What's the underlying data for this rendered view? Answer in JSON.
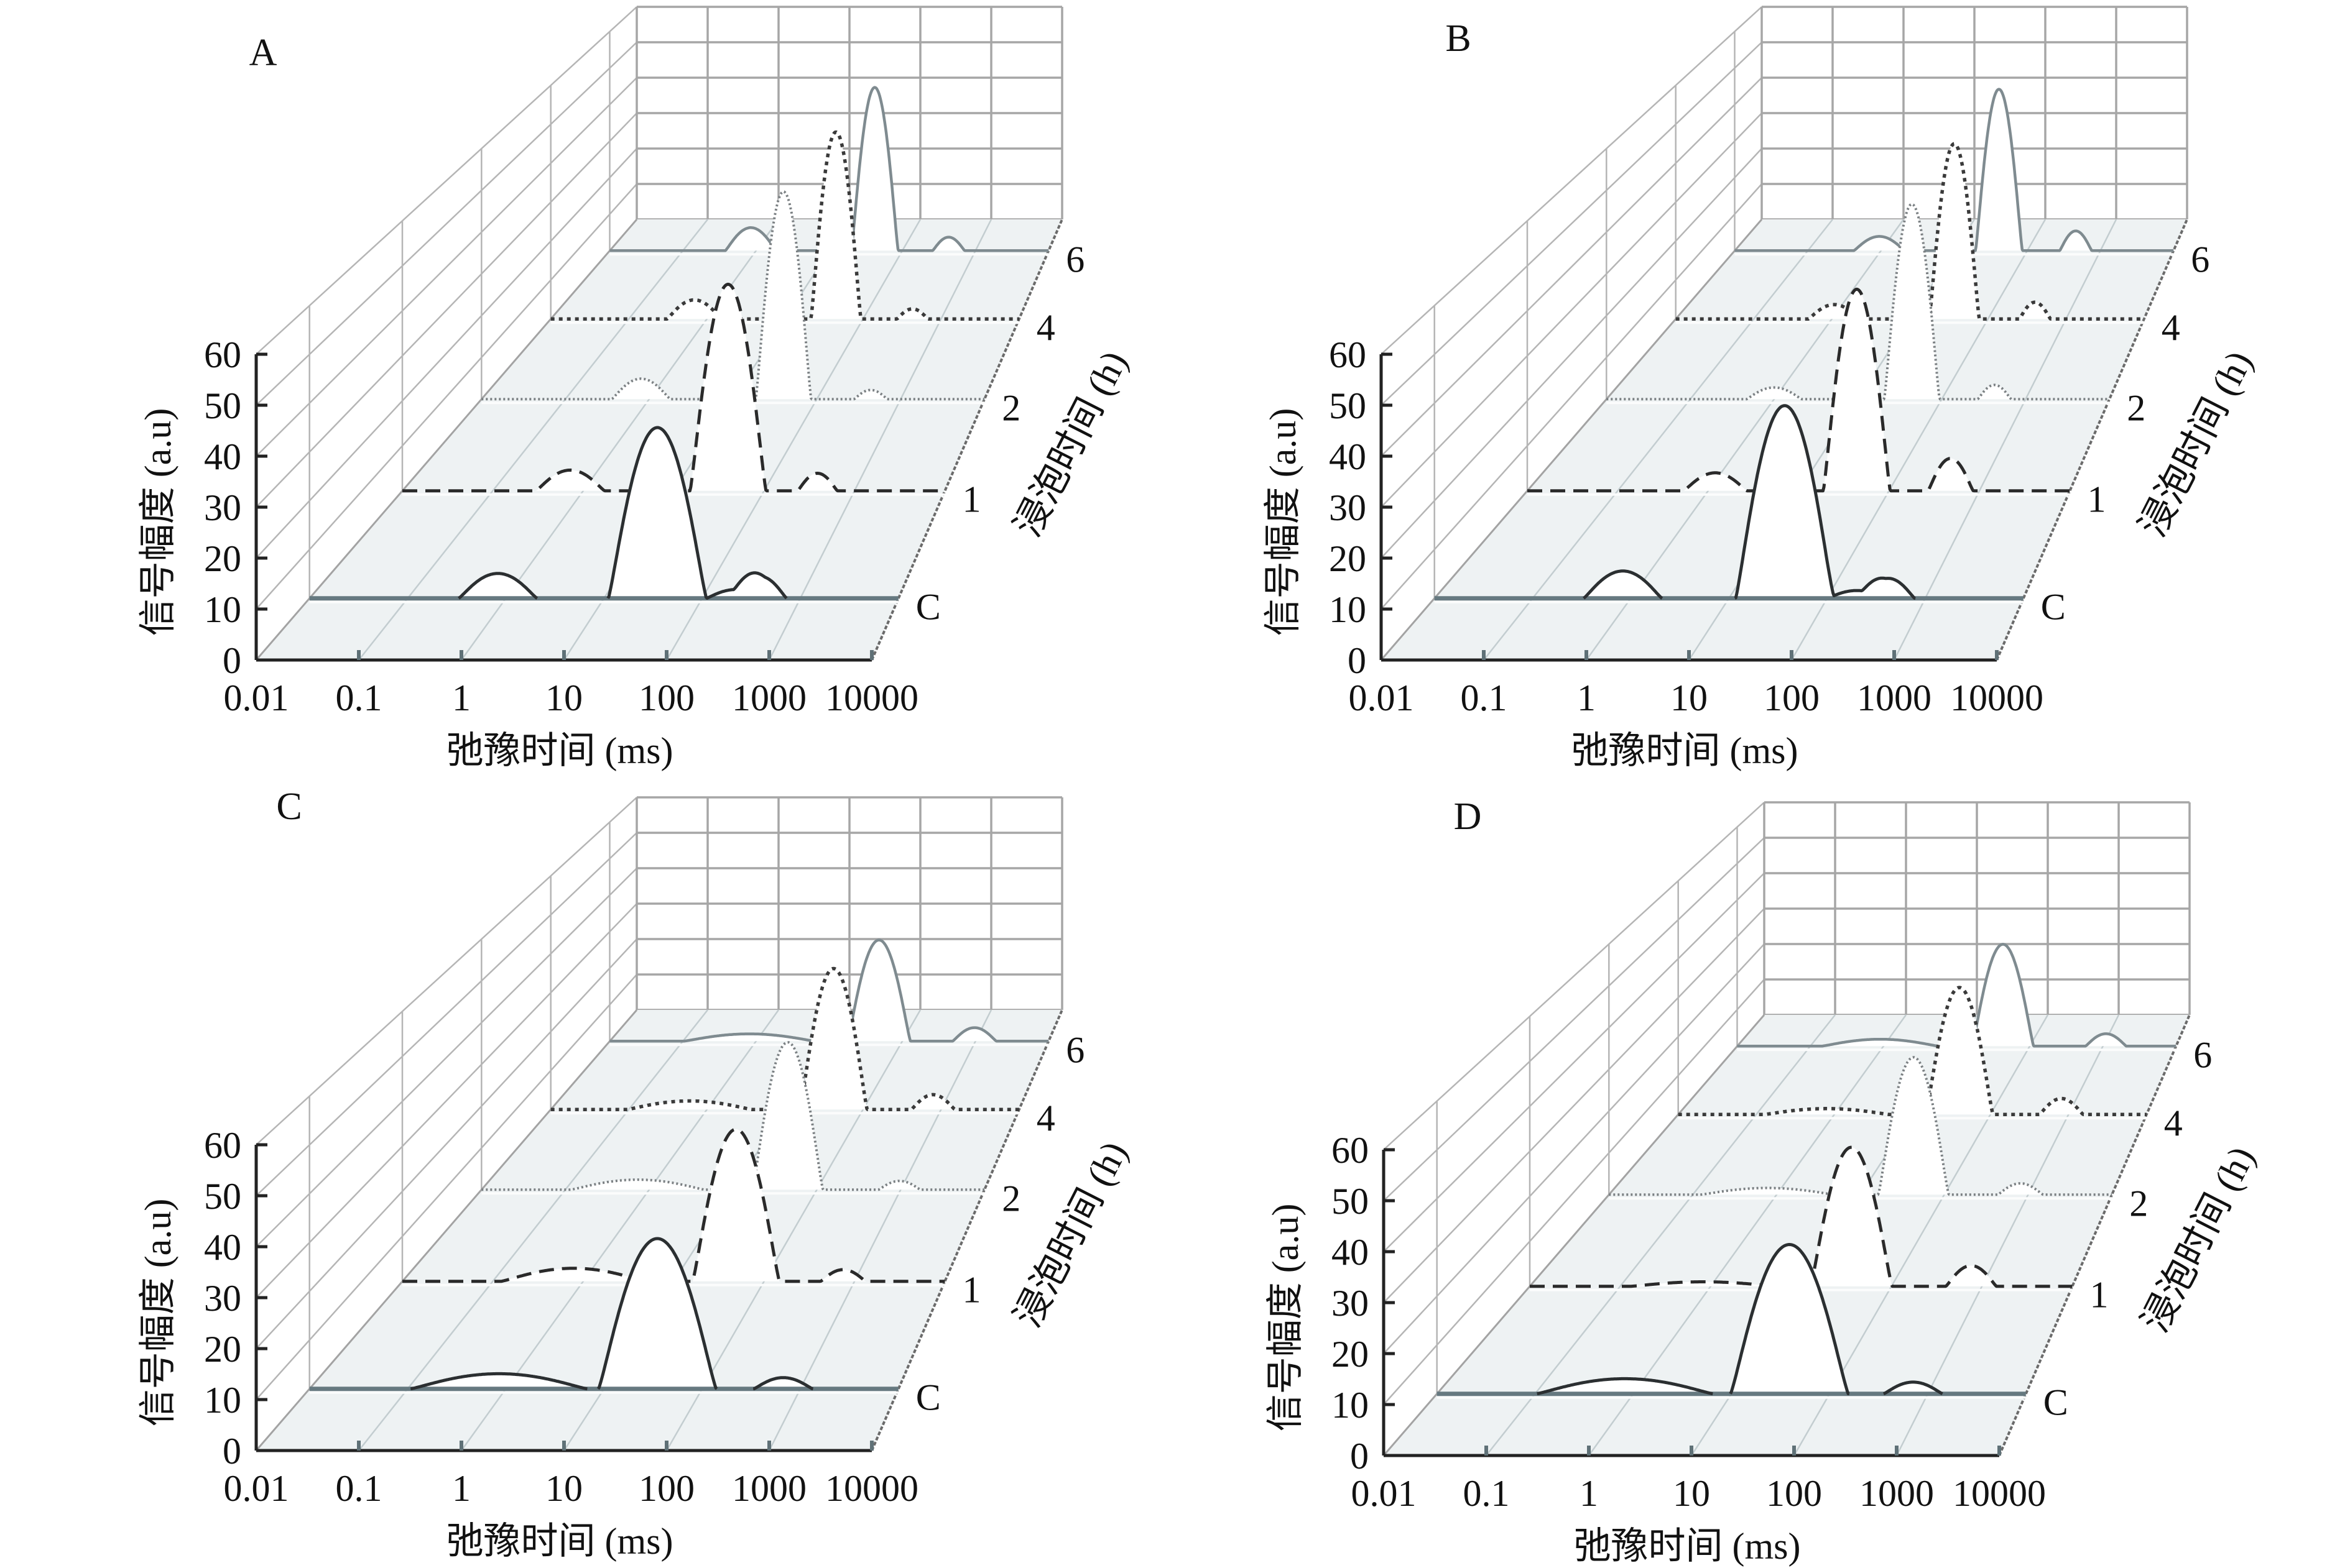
{
  "colors": {
    "floor": "#eef2f3",
    "floor_grid": "#c3cdd0",
    "floor_left_edge": "#a3a3a3",
    "floor_right_edge": "#6b6b6b",
    "side_wall_grid": "#b5b5b5",
    "back_wall_grid": "#a6a6a6",
    "axis": "#222222",
    "x_tick": "#5f7177",
    "area_fill": "#ffffff"
  },
  "chart_data": [
    {
      "type": "line",
      "title": "A",
      "xlabel": "弛豫时间 (ms)",
      "ylabel": "信号幅度 (a.u)",
      "zlabel": "浸泡时间 (h)",
      "x_scale": "log",
      "xlim": [
        0.01,
        10000
      ],
      "ylim": [
        0,
        60
      ],
      "grid": true,
      "x_ticks": [
        "0.01",
        "0.1",
        "1",
        "10",
        "100",
        "1000",
        "10000"
      ],
      "y_ticks": [
        "0",
        "10",
        "20",
        "30",
        "40",
        "50",
        "60"
      ],
      "series": [
        {
          "name": "C",
          "line_style": "solid",
          "color": "#2b2f31",
          "baseline_color": "#667980",
          "peaks": [
            {
              "t_ms": 0.83,
              "amplitude": 5.1,
              "half_width_decades": 0.4
            },
            {
              "t_ms": 35,
              "amplitude": 35.0,
              "half_width_decades": 0.5
            },
            {
              "t_ms": 220,
              "amplitude": 1.8,
              "half_width_decades": 0.3
            },
            {
              "t_ms": 390,
              "amplitude": 4.5,
              "half_width_decades": 0.27
            }
          ]
        },
        {
          "name": "1",
          "line_style": "dashed",
          "color": "#2a2a2a",
          "peaks": [
            {
              "t_ms": 0.72,
              "amplitude": 4.6,
              "half_width_decades": 0.38
            },
            {
              "t_ms": 40,
              "amplitude": 45.9,
              "half_width_decades": 0.42
            },
            {
              "t_ms": 390,
              "amplitude": 3.9,
              "half_width_decades": 0.22
            }
          ]
        },
        {
          "name": "2",
          "line_style": "dotted",
          "color": "#7b8083",
          "peaks": [
            {
              "t_ms": 0.8,
              "amplitude": 4.9,
              "half_width_decades": 0.35
            },
            {
              "t_ms": 40,
              "amplitude": 49.7,
              "half_width_decades": 0.33
            },
            {
              "t_ms": 440,
              "amplitude": 2.2,
              "half_width_decades": 0.2
            }
          ]
        },
        {
          "name": "4",
          "line_style": "dotted",
          "color": "#3a3a3a",
          "peaks": [
            {
              "t_ms": 0.69,
              "amplitude": 4.9,
              "half_width_decades": 0.35
            },
            {
              "t_ms": 45,
              "amplitude": 48.0,
              "half_width_decades": 0.32
            },
            {
              "t_ms": 430,
              "amplitude": 2.6,
              "half_width_decades": 0.2
            }
          ]
        },
        {
          "name": "6",
          "line_style": "solid",
          "color": "#7f8b90",
          "peaks": [
            {
              "t_ms": 0.85,
              "amplitude": 6.3,
              "half_width_decades": 0.35
            },
            {
              "t_ms": 42,
              "amplitude": 44.7,
              "half_width_decades": 0.32
            },
            {
              "t_ms": 430,
              "amplitude": 3.7,
              "half_width_decades": 0.22
            }
          ]
        }
      ]
    },
    {
      "type": "line",
      "title": "B",
      "xlabel": "弛豫时间 (ms)",
      "ylabel": "信号幅度 (a.u)",
      "zlabel": "浸泡时间 (h)",
      "x_scale": "log",
      "xlim": [
        0.01,
        10000
      ],
      "ylim": [
        0,
        60
      ],
      "grid": true,
      "x_ticks": [
        "0.01",
        "0.1",
        "1",
        "10",
        "100",
        "1000",
        "10000"
      ],
      "y_ticks": [
        "0",
        "10",
        "20",
        "30",
        "40",
        "50",
        "60"
      ],
      "series": [
        {
          "name": "C",
          "line_style": "solid",
          "color": "#2b2f31",
          "baseline_color": "#667980",
          "peaks": [
            {
              "t_ms": 0.83,
              "amplitude": 5.6,
              "half_width_decades": 0.4
            },
            {
              "t_ms": 37,
              "amplitude": 39.5,
              "half_width_decades": 0.5
            },
            {
              "t_ms": 200,
              "amplitude": 1.6,
              "half_width_decades": 0.3
            },
            {
              "t_ms": 420,
              "amplitude": 4.1,
              "half_width_decades": 0.27
            }
          ]
        },
        {
          "name": "1",
          "line_style": "dashed",
          "color": "#2a2a2a",
          "peaks": [
            {
              "t_ms": 1.2,
              "amplitude": 4.0,
              "half_width_decades": 0.35
            },
            {
              "t_ms": 44,
              "amplitude": 44.8,
              "half_width_decades": 0.37
            },
            {
              "t_ms": 480,
              "amplitude": 7.2,
              "half_width_decades": 0.25
            }
          ]
        },
        {
          "name": "2",
          "line_style": "dotted",
          "color": "#7b8083",
          "peaks": [
            {
              "t_ms": 1.0,
              "amplitude": 2.8,
              "half_width_decades": 0.33
            },
            {
              "t_ms": 44,
              "amplitude": 46.7,
              "half_width_decades": 0.33
            },
            {
              "t_ms": 425,
              "amplitude": 3.4,
              "half_width_decades": 0.2
            }
          ]
        },
        {
          "name": "4",
          "line_style": "dotted",
          "color": "#3a3a3a",
          "peaks": [
            {
              "t_ms": 1.07,
              "amplitude": 3.7,
              "half_width_decades": 0.33
            },
            {
              "t_ms": 37,
              "amplitude": 45.0,
              "half_width_decades": 0.32
            },
            {
              "t_ms": 400,
              "amplitude": 4.3,
              "half_width_decades": 0.2
            }
          ]
        },
        {
          "name": "6",
          "line_style": "solid",
          "color": "#7f8b90",
          "peaks": [
            {
              "t_ms": 0.95,
              "amplitude": 3.9,
              "half_width_decades": 0.35
            },
            {
              "t_ms": 41,
              "amplitude": 44.2,
              "half_width_decades": 0.32
            },
            {
              "t_ms": 460,
              "amplitude": 5.4,
              "half_width_decades": 0.22
            }
          ]
        }
      ]
    },
    {
      "type": "line",
      "title": "C",
      "xlabel": "弛豫时间 (ms)",
      "ylabel": "信号幅度 (a.u)",
      "zlabel": "浸泡时间 (h)",
      "x_scale": "log",
      "xlim": [
        0.01,
        10000
      ],
      "ylim": [
        0,
        60
      ],
      "grid": true,
      "x_ticks": [
        "0.01",
        "0.1",
        "1",
        "10",
        "100",
        "1000",
        "10000"
      ],
      "y_ticks": [
        "0",
        "10",
        "20",
        "30",
        "40",
        "50",
        "60"
      ],
      "series": [
        {
          "name": "C",
          "line_style": "solid",
          "color": "#2b2f31",
          "baseline_color": "#667980",
          "peaks": [
            {
              "t_ms": 0.85,
              "amplitude": 3.1,
              "half_width_decades": 0.9
            },
            {
              "t_ms": 35,
              "amplitude": 30.8,
              "half_width_decades": 0.6
            },
            {
              "t_ms": 670,
              "amplitude": 2.3,
              "half_width_decades": 0.3
            }
          ]
        },
        {
          "name": "1",
          "line_style": "dashed",
          "color": "#2a2a2a",
          "peaks": [
            {
              "t_ms": 0.78,
              "amplitude": 2.9,
              "half_width_decades": 0.8
            },
            {
              "t_ms": 49,
              "amplitude": 33.8,
              "half_width_decades": 0.48
            },
            {
              "t_ms": 750,
              "amplitude": 2.6,
              "half_width_decades": 0.25
            }
          ]
        },
        {
          "name": "2",
          "line_style": "dotted",
          "color": "#7b8083",
          "peaks": [
            {
              "t_ms": 0.73,
              "amplitude": 2.4,
              "half_width_decades": 0.8
            },
            {
              "t_ms": 45,
              "amplitude": 35.3,
              "half_width_decades": 0.42
            },
            {
              "t_ms": 970,
              "amplitude": 2.1,
              "half_width_decades": 0.25
            }
          ]
        },
        {
          "name": "4",
          "line_style": "dotted",
          "color": "#3a3a3a",
          "peaks": [
            {
              "t_ms": 0.6,
              "amplitude": 2.2,
              "half_width_decades": 0.8
            },
            {
              "t_ms": 42,
              "amplitude": 36.2,
              "half_width_decades": 0.43
            },
            {
              "t_ms": 790,
              "amplitude": 3.8,
              "half_width_decades": 0.28
            }
          ]
        },
        {
          "name": "6",
          "line_style": "solid",
          "color": "#7f8b90",
          "peaks": [
            {
              "t_ms": 0.81,
              "amplitude": 2.0,
              "half_width_decades": 0.9
            },
            {
              "t_ms": 48,
              "amplitude": 27.7,
              "half_width_decades": 0.43
            },
            {
              "t_ms": 970,
              "amplitude": 3.7,
              "half_width_decades": 0.3
            }
          ]
        }
      ]
    },
    {
      "type": "line",
      "title": "D",
      "xlabel": "弛豫时间 (ms)",
      "ylabel": "信号幅度 (a.u)",
      "zlabel": "浸泡时间 (h)",
      "x_scale": "log",
      "xlim": [
        0.01,
        10000
      ],
      "ylim": [
        0,
        60
      ],
      "grid": true,
      "x_ticks": [
        "0.01",
        "0.1",
        "1",
        "10",
        "100",
        "1000",
        "10000"
      ],
      "y_ticks": [
        "0",
        "10",
        "20",
        "30",
        "40",
        "50",
        "60"
      ],
      "series": [
        {
          "name": "C",
          "line_style": "solid",
          "color": "#2b2f31",
          "baseline_color": "#667980",
          "peaks": [
            {
              "t_ms": 0.82,
              "amplitude": 3.1,
              "half_width_decades": 0.9
            },
            {
              "t_ms": 39,
              "amplitude": 30.6,
              "half_width_decades": 0.6
            },
            {
              "t_ms": 710,
              "amplitude": 2.4,
              "half_width_decades": 0.3
            }
          ]
        },
        {
          "name": "1",
          "line_style": "dashed",
          "color": "#2a2a2a",
          "peaks": [
            {
              "t_ms": 0.83,
              "amplitude": 1.0,
              "half_width_decades": 0.8
            },
            {
              "t_ms": 36,
              "amplitude": 30.9,
              "half_width_decades": 0.45
            },
            {
              "t_ms": 760,
              "amplitude": 4.6,
              "half_width_decades": 0.28
            }
          ]
        },
        {
          "name": "2",
          "line_style": "dotted",
          "color": "#7b8083",
          "peaks": [
            {
              "t_ms": 0.78,
              "amplitude": 1.6,
              "half_width_decades": 0.8
            },
            {
              "t_ms": 43,
              "amplitude": 32.9,
              "half_width_decades": 0.42
            },
            {
              "t_ms": 810,
              "amplitude": 2.7,
              "half_width_decades": 0.27
            }
          ]
        },
        {
          "name": "4",
          "line_style": "dotted",
          "color": "#3a3a3a",
          "peaks": [
            {
              "t_ms": 0.8,
              "amplitude": 1.5,
              "half_width_decades": 0.8
            },
            {
              "t_ms": 40,
              "amplitude": 32.6,
              "half_width_decades": 0.43
            },
            {
              "t_ms": 810,
              "amplitude": 4.1,
              "half_width_decades": 0.28
            }
          ]
        },
        {
          "name": "6",
          "line_style": "solid",
          "color": "#7f8b90",
          "peaks": [
            {
              "t_ms": 0.9,
              "amplitude": 1.9,
              "half_width_decades": 0.8
            },
            {
              "t_ms": 43,
              "amplitude": 27.9,
              "half_width_decades": 0.42
            },
            {
              "t_ms": 1100,
              "amplitude": 3.4,
              "half_width_decades": 0.28
            }
          ]
        }
      ]
    }
  ]
}
